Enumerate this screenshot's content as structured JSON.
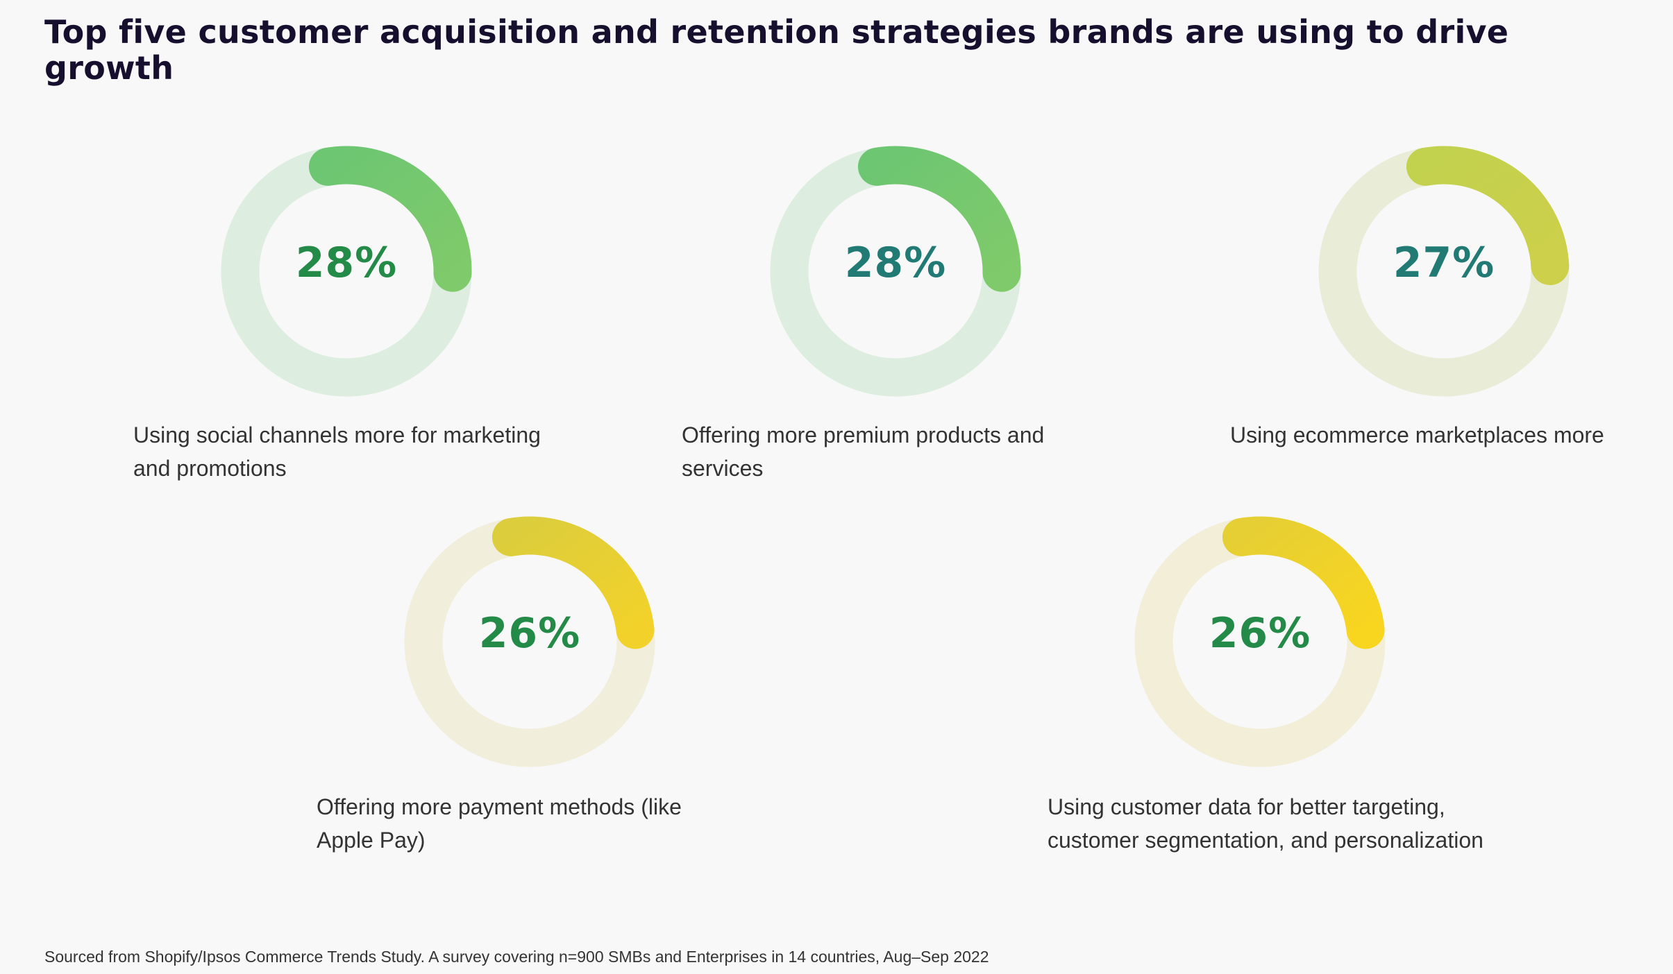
{
  "title": "Top five customer acquisition and retention strategies brands are using to drive growth",
  "footnote": "Sourced from Shopify/Ipsos Commerce Trends Study. A survey covering n=900 SMBs and Enterprises in 14 countries, Aug–Sep 2022",
  "chart_data": {
    "type": "pie",
    "items": [
      {
        "label": "Using social channels more for marketing and promotions",
        "value": 28,
        "value_text": "28%",
        "arc_start": "#6dc672",
        "arc_end": "#7fca6a",
        "track": "#ddeee0",
        "text_color": "#238a48"
      },
      {
        "label": "Offering more premium products and services",
        "value": 28,
        "value_text": "28%",
        "arc_start": "#6dc672",
        "arc_end": "#7fca6a",
        "track": "#ddeee0",
        "text_color": "#217a73"
      },
      {
        "label": "Using ecommerce marketplaces more",
        "value": 27,
        "value_text": "27%",
        "arc_start": "#c2d14e",
        "arc_end": "#cdd04a",
        "track": "#e9edd8",
        "text_color": "#217a73"
      },
      {
        "label": "Offering more payment methods (like Apple Pay)",
        "value": 26,
        "value_text": "26%",
        "arc_start": "#dccd3c",
        "arc_end": "#f2d22a",
        "track": "#f1eedb",
        "text_color": "#238a48"
      },
      {
        "label": "Using customer data for better targeting, customer segmentation, and personalization",
        "value": 26,
        "value_text": "26%",
        "arc_start": "#e6cf34",
        "arc_end": "#f8d51f",
        "track": "#f2eed8",
        "text_color": "#238a48"
      }
    ]
  }
}
